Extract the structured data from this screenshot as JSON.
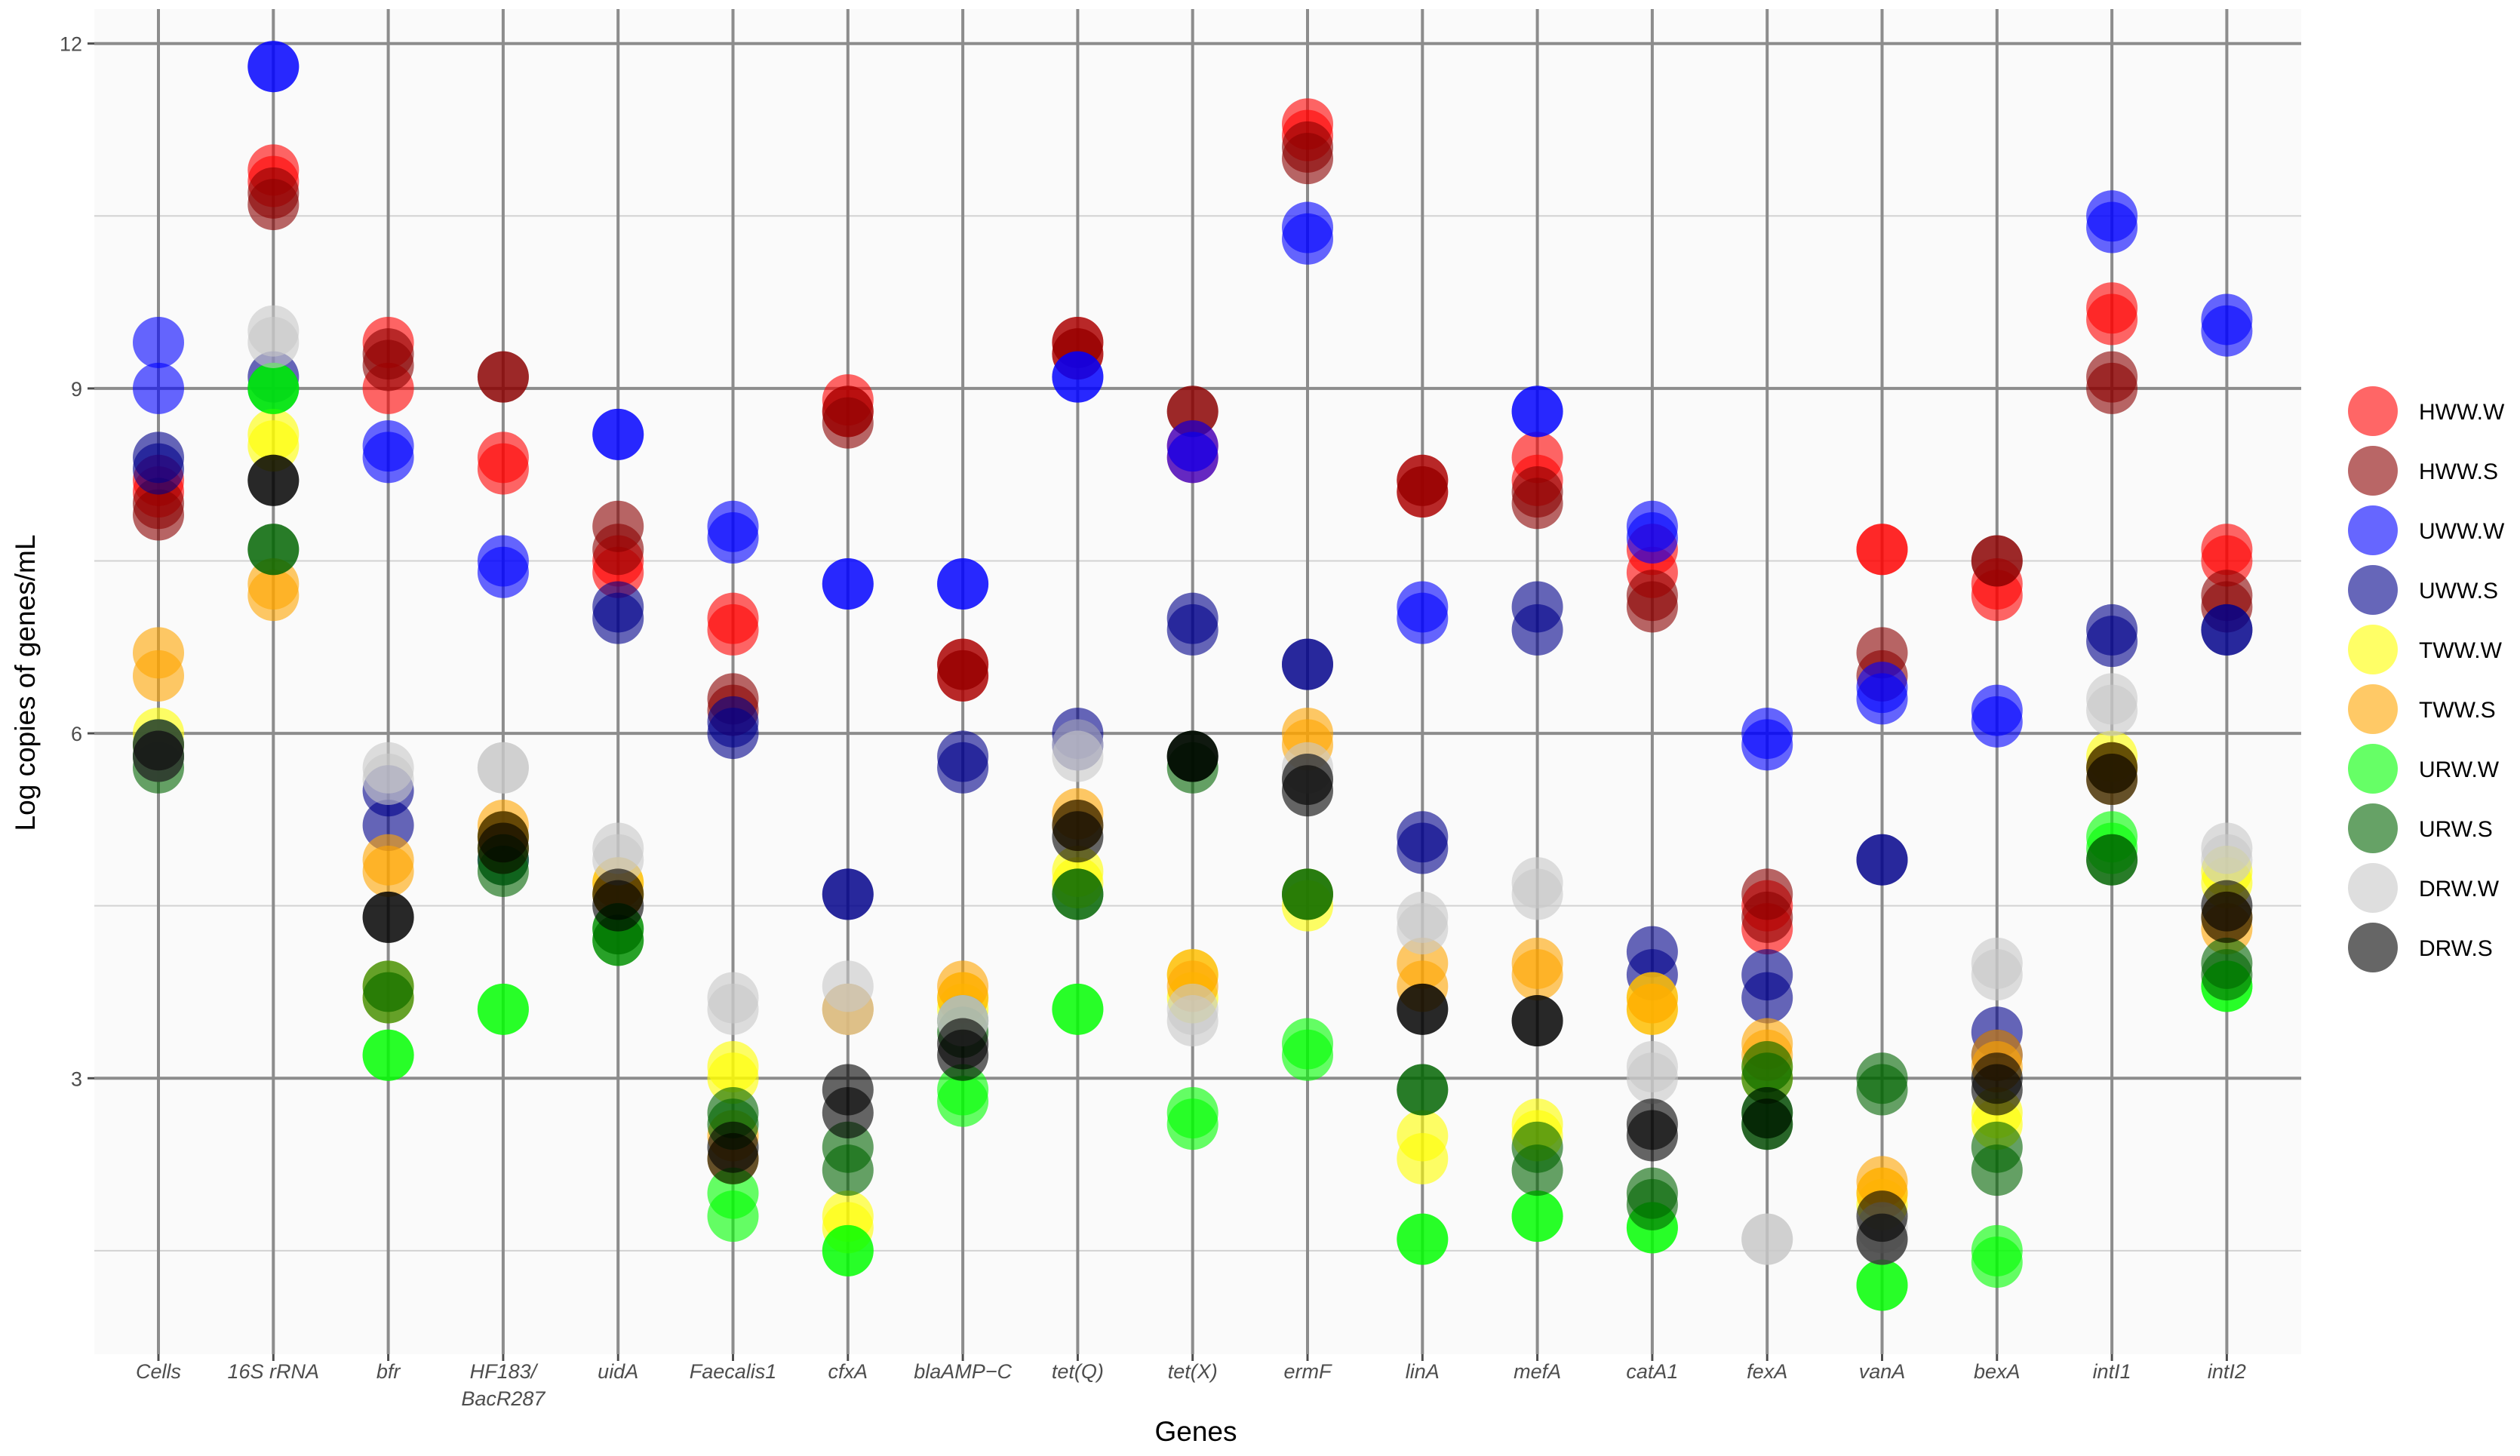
{
  "chart_data": {
    "type": "scatter",
    "xlabel": "Genes",
    "ylabel": "Log copies of genes/mL",
    "ylim": [
      0.6,
      12.3
    ],
    "yticks": [
      3,
      6,
      9,
      12
    ],
    "grid": true,
    "legend_position": "right",
    "categories": [
      {
        "lines": [
          "Cells"
        ]
      },
      {
        "lines": [
          "16S rRNA"
        ]
      },
      {
        "lines": [
          "bfr"
        ]
      },
      {
        "lines": [
          "HF183/",
          "BacR287"
        ]
      },
      {
        "lines": [
          "uidA"
        ]
      },
      {
        "lines": [
          "Faecalis1"
        ]
      },
      {
        "lines": [
          "cfxA"
        ]
      },
      {
        "lines": [
          "blaAMP−C"
        ]
      },
      {
        "lines": [
          "tet(Q)"
        ]
      },
      {
        "lines": [
          "tet(X)"
        ]
      },
      {
        "lines": [
          "ermF"
        ]
      },
      {
        "lines": [
          "linA"
        ]
      },
      {
        "lines": [
          "mefA"
        ]
      },
      {
        "lines": [
          "catA1"
        ]
      },
      {
        "lines": [
          "fexA"
        ]
      },
      {
        "lines": [
          "vanA"
        ]
      },
      {
        "lines": [
          "bexA"
        ]
      },
      {
        "lines": [
          "intI1"
        ]
      },
      {
        "lines": [
          "intI2"
        ]
      }
    ],
    "series": [
      {
        "name": "HWW.W",
        "color": "#ff0000",
        "values": [
          [
            8.2,
            8.1
          ],
          [
            10.9,
            10.8
          ],
          [
            9.0,
            9.4
          ],
          [
            8.4,
            8.3
          ],
          [
            7.4,
            7.5
          ],
          [
            7.0,
            6.9
          ],
          [
            8.9,
            8.8
          ],
          [
            6.5,
            6.6
          ],
          [
            9.4,
            9.3
          ],
          [
            8.4,
            8.5
          ],
          [
            11.3,
            11.2
          ],
          [
            8.1,
            8.2
          ],
          [
            8.4,
            8.2
          ],
          [
            7.4,
            7.6
          ],
          [
            4.3,
            4.5
          ],
          [
            7.6,
            7.6
          ],
          [
            7.2,
            7.3
          ],
          [
            9.7,
            9.6
          ],
          [
            7.6,
            7.5
          ]
        ]
      },
      {
        "name": "HWW.S",
        "color": "#8b0000",
        "values": [
          [
            7.9,
            8.0
          ],
          [
            10.7,
            10.6
          ],
          [
            9.3,
            9.2
          ],
          [
            9.1,
            9.1
          ],
          [
            7.8,
            7.6
          ],
          [
            6.2,
            6.3
          ],
          [
            8.8,
            8.7
          ],
          [
            6.6,
            6.5
          ],
          [
            9.3,
            9.4
          ],
          [
            8.8,
            8.8
          ],
          [
            11.1,
            11.0
          ],
          [
            8.2,
            8.1
          ],
          [
            8.1,
            8.0
          ],
          [
            7.1,
            7.2
          ],
          [
            4.4,
            4.6
          ],
          [
            6.7,
            6.5
          ],
          [
            7.5,
            7.5
          ],
          [
            9.1,
            9.0
          ],
          [
            7.2,
            7.1
          ]
        ]
      },
      {
        "name": "UWW.W",
        "color": "#0000ff",
        "values": [
          [
            9.4,
            9.0
          ],
          [
            11.8,
            11.8
          ],
          [
            8.5,
            8.4
          ],
          [
            7.5,
            7.4
          ],
          [
            8.6,
            8.6
          ],
          [
            7.8,
            7.7
          ],
          [
            7.3,
            7.3
          ],
          [
            7.3,
            7.3
          ],
          [
            9.1,
            9.1
          ],
          [
            8.4,
            8.5
          ],
          [
            10.4,
            10.3
          ],
          [
            7.1,
            7.0
          ],
          [
            8.8,
            8.8
          ],
          [
            7.8,
            7.7
          ],
          [
            6.0,
            5.9
          ],
          [
            6.4,
            6.3
          ],
          [
            6.2,
            6.1
          ],
          [
            10.5,
            10.4
          ],
          [
            9.6,
            9.5
          ]
        ]
      },
      {
        "name": "UWW.S",
        "color": "#00008b",
        "values": [
          [
            8.4,
            8.3
          ],
          [
            9.1,
            9.0
          ],
          [
            5.2,
            5.5
          ],
          [
            4.9,
            5.0
          ],
          [
            7.0,
            7.1
          ],
          [
            6.0,
            6.1
          ],
          [
            4.6,
            4.6
          ],
          [
            5.7,
            5.8
          ],
          [
            6.0,
            5.9
          ],
          [
            7.0,
            6.9
          ],
          [
            6.6,
            6.6
          ],
          [
            5.0,
            5.1
          ],
          [
            7.1,
            6.9
          ],
          [
            3.9,
            4.1
          ],
          [
            3.7,
            3.9
          ],
          [
            4.9,
            4.9
          ],
          [
            3.4,
            3.2
          ],
          [
            6.9,
            6.8
          ],
          [
            6.9,
            6.9
          ]
        ]
      },
      {
        "name": "TWW.W",
        "color": "#ffff00",
        "values": [
          [
            6.0,
            5.9
          ],
          [
            8.6,
            8.5
          ],
          [
            3.8,
            3.7
          ],
          [
            5.0,
            5.1
          ],
          [
            4.6,
            4.7
          ],
          [
            3.1,
            3.0
          ],
          [
            1.8,
            1.7
          ],
          [
            3.7,
            3.6
          ],
          [
            4.7,
            4.8
          ],
          [
            3.9,
            3.7
          ],
          [
            4.5,
            4.6
          ],
          [
            2.3,
            2.5
          ],
          [
            2.6,
            2.5
          ],
          [
            3.7,
            3.6
          ],
          [
            3.1,
            3.0
          ],
          [
            2.0,
            1.9
          ],
          [
            2.6,
            2.7
          ],
          [
            5.8,
            5.7
          ],
          [
            4.7,
            4.8
          ]
        ]
      },
      {
        "name": "TWW.S",
        "color": "#ffa500",
        "values": [
          [
            6.7,
            6.5
          ],
          [
            7.2,
            7.3
          ],
          [
            4.8,
            4.9
          ],
          [
            5.2,
            5.1
          ],
          [
            4.6,
            4.7
          ],
          [
            2.5,
            2.3
          ],
          [
            3.6,
            3.6
          ],
          [
            3.8,
            3.7
          ],
          [
            5.3,
            5.2
          ],
          [
            3.9,
            3.8
          ],
          [
            5.9,
            6.0
          ],
          [
            4.0,
            3.8
          ],
          [
            3.9,
            4.0
          ],
          [
            3.7,
            3.6
          ],
          [
            3.2,
            3.3
          ],
          [
            2.1,
            2.0
          ],
          [
            3.1,
            3.2
          ],
          [
            5.6,
            5.7
          ],
          [
            4.3,
            4.4
          ]
        ]
      },
      {
        "name": "URW.W",
        "color": "#00ff00",
        "values": [
          [
            5.8,
            5.9
          ],
          [
            9.0,
            9.0
          ],
          [
            3.2,
            3.2
          ],
          [
            3.6,
            3.6
          ],
          [
            4.3,
            4.2
          ],
          [
            1.8,
            2.0
          ],
          [
            1.5,
            1.5
          ],
          [
            2.9,
            2.8
          ],
          [
            3.6,
            3.6
          ],
          [
            2.6,
            2.7
          ],
          [
            3.2,
            3.3
          ],
          [
            1.6,
            1.6
          ],
          [
            1.8,
            1.8
          ],
          [
            1.7,
            1.7
          ],
          [
            2.6,
            2.7
          ],
          [
            1.2,
            1.2
          ],
          [
            1.5,
            1.4
          ],
          [
            5.1,
            5.0
          ],
          [
            3.8,
            3.8
          ]
        ]
      },
      {
        "name": "URW.S",
        "color": "#006400",
        "values": [
          [
            5.7,
            5.8
          ],
          [
            7.6,
            7.6
          ],
          [
            3.8,
            3.7
          ],
          [
            4.8,
            4.9
          ],
          [
            4.3,
            4.2
          ],
          [
            2.7,
            2.6
          ],
          [
            2.4,
            2.2
          ],
          [
            3.5,
            3.4
          ],
          [
            4.6,
            4.6
          ],
          [
            5.7,
            5.8
          ],
          [
            4.6,
            4.6
          ],
          [
            2.9,
            2.9
          ],
          [
            2.4,
            2.2
          ],
          [
            2.0,
            1.9
          ],
          [
            3.0,
            3.1
          ],
          [
            3.0,
            2.9
          ],
          [
            2.4,
            2.2
          ],
          [
            4.9,
            4.9
          ],
          [
            3.9,
            4.0
          ]
        ]
      },
      {
        "name": "DRW.W",
        "color": "#c8c8c8",
        "values": [
          [
            5.9,
            5.8
          ],
          [
            9.4,
            9.5
          ],
          [
            5.6,
            5.7
          ],
          [
            5.7,
            5.7
          ],
          [
            4.9,
            5.0
          ],
          [
            3.7,
            3.6
          ],
          [
            3.8,
            3.6
          ],
          [
            3.5,
            3.5
          ],
          [
            5.9,
            5.8
          ],
          [
            3.6,
            3.5
          ],
          [
            5.6,
            5.7
          ],
          [
            4.3,
            4.4
          ],
          [
            4.6,
            4.7
          ],
          [
            3.1,
            3.0
          ],
          [
            1.6,
            1.6
          ],
          [
            1.7,
            1.6
          ],
          [
            4.0,
            3.9
          ],
          [
            6.2,
            6.3
          ],
          [
            4.9,
            5.0
          ]
        ]
      },
      {
        "name": "DRW.S",
        "color": "#000000",
        "values": [
          [
            5.9,
            5.8
          ],
          [
            8.2,
            8.2
          ],
          [
            4.4,
            4.4
          ],
          [
            5.1,
            5.0
          ],
          [
            4.6,
            4.5
          ],
          [
            2.4,
            2.3
          ],
          [
            2.9,
            2.7
          ],
          [
            3.3,
            3.2
          ],
          [
            5.2,
            5.1
          ],
          [
            5.8,
            5.8
          ],
          [
            5.5,
            5.6
          ],
          [
            3.6,
            3.6
          ],
          [
            3.5,
            3.5
          ],
          [
            2.5,
            2.6
          ],
          [
            2.7,
            2.6
          ],
          [
            1.6,
            1.8
          ],
          [
            3.0,
            2.9
          ],
          [
            5.7,
            5.6
          ],
          [
            4.5,
            4.4
          ]
        ]
      }
    ]
  }
}
